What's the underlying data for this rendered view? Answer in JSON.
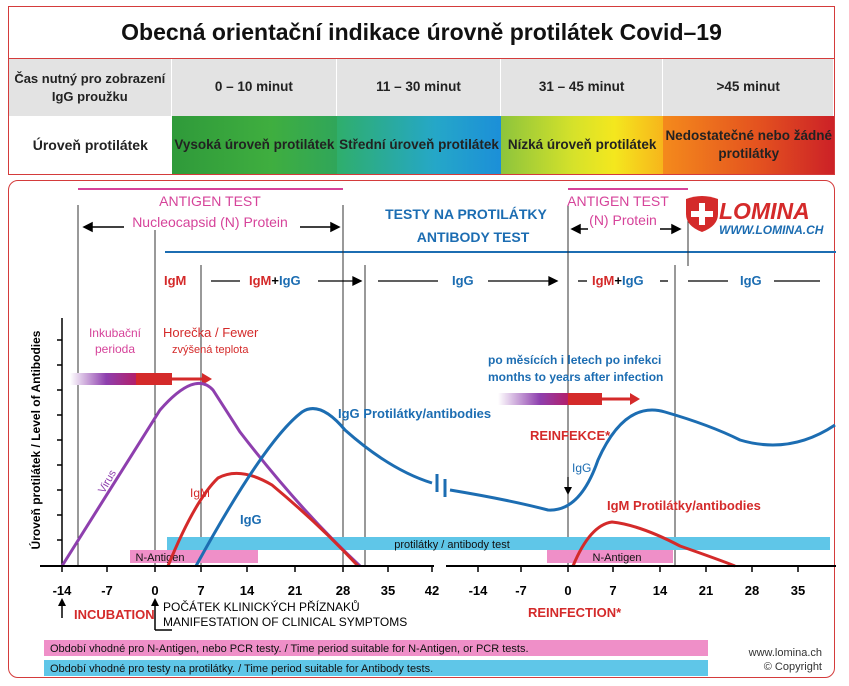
{
  "title": "Obecná orientační indikace úrovně protilátek Covid–19",
  "table": {
    "header": [
      "Čas nutný pro zobrazení IgG proužku",
      "0 – 10 minut",
      "11 – 30 minut",
      "31 – 45 minut",
      ">45 minut"
    ],
    "level_label": "Úroveň protilátek",
    "levels": [
      "Vysoká úroveň protilátek",
      "Střední úroveň protilátek",
      "Nízká úroveň protilátek",
      "Nedostatečné nebo žádné protilátky"
    ]
  },
  "logo": {
    "name": "LOMINA",
    "url": "WWW.LOMINA.CH"
  },
  "labels": {
    "antigen1_a": "ANTIGEN TEST",
    "antigen1_b": "Nucleocapsid (N) Protein",
    "antibody_cz": "TESTY NA PROTILÁTKY",
    "antibody_en": "ANTIBODY TEST",
    "antigen2_a": "ANTIGEN TEST",
    "antigen2_b": "(N) Protein",
    "igm": "IgM",
    "igg": "IgG",
    "plus": "+",
    "incub_a": "Inkubační",
    "incub_b": "perioda",
    "fever_a": "Horečka / Fewer",
    "fever_b": "zvýšená teplota",
    "months_cz": "po měsících i letech po infekci",
    "months_en": "months to years after infection",
    "igg_antibodies": "IgG Protilátky/antibodies",
    "reinfekce": "REINFEKCE*",
    "igm_antibodies": "IgM Protilátky/antibodies",
    "virus": "Virus",
    "y_axis": "Úroveň protilátek / Level of Antibodies",
    "protilatky_bar": "protilátky / antibody test",
    "n_antigen": "N-Antigen",
    "incubation": "INCUBATION",
    "pocatek": "POČÁTEK KLINICKÝCH PŘÍZNAKŮ",
    "manifestation": "MANIFESTATION OF CLINICAL SYMPTOMS",
    "reinfection": "REINFECTION*",
    "legend_pink": "Období vhodné pro N-Antigen, nebo PCR testy.  / Time period suitable for N-Antigen, or PCR tests.",
    "legend_blue": "Období vhodné pro testy na protilátky. / Time period suitable for Antibody tests.",
    "site": "www.lomina.ch",
    "copyright": "© Copyright"
  },
  "axis_ticks_left": [
    "-14",
    "-7",
    "0",
    "7",
    "14",
    "21",
    "28",
    "35",
    "42"
  ],
  "axis_ticks_right": [
    "-14",
    "-7",
    "0",
    "7",
    "14",
    "21",
    "28",
    "35"
  ],
  "colors": {
    "red": "#d42a2a",
    "blue": "#1c6db2",
    "purple": "#8e3fae",
    "pink": "#d6439a",
    "cyan": "#5fc6e8",
    "barpink": "#ef8fc8"
  }
}
